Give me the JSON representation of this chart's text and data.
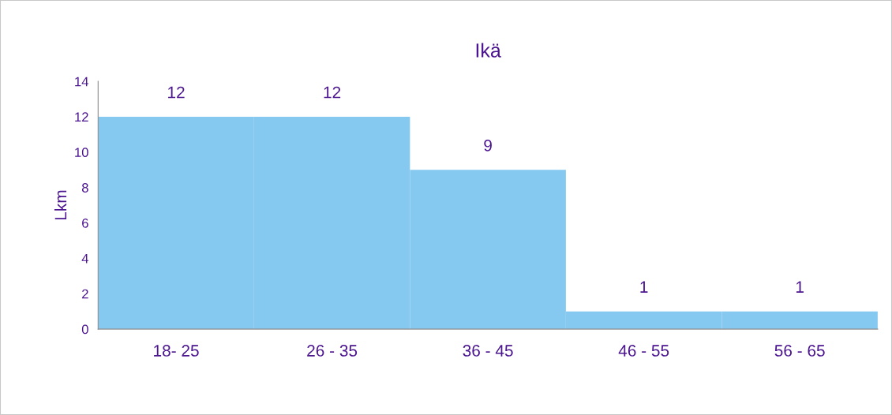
{
  "chart_data": {
    "type": "bar",
    "title": "Ikä",
    "ylabel": "Lkm",
    "categories": [
      "18- 25",
      "26 - 35",
      "36 - 45",
      "46 - 55",
      "56 - 65"
    ],
    "values": [
      12,
      12,
      9,
      1,
      1
    ],
    "color": "#85c8f0",
    "ylim": [
      0,
      14
    ],
    "yticks": [
      0,
      2,
      4,
      6,
      8,
      10,
      12,
      14
    ],
    "data_labels": true,
    "grid": false,
    "legend": false
  }
}
